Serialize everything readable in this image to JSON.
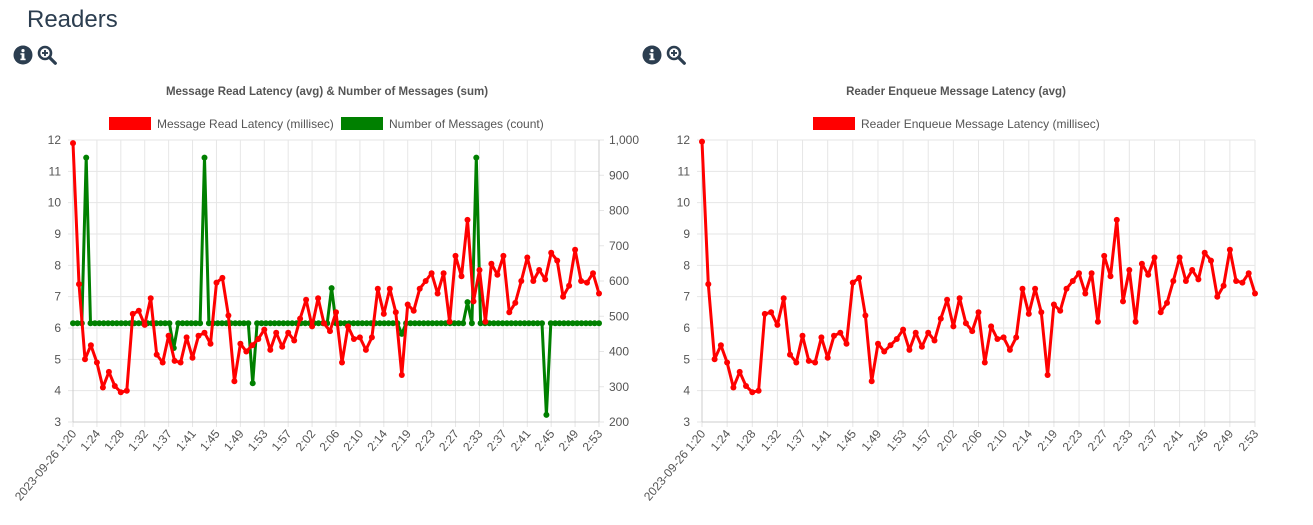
{
  "page": {
    "title": "Readers"
  },
  "icons": {
    "info": "info-circle-icon",
    "zoom": "magnifier-plus-icon"
  },
  "colors": {
    "red": "#ff0000",
    "green": "#008000",
    "grid": "#e6e6e6",
    "text": "#555555"
  },
  "chart_data": [
    {
      "type": "line",
      "title": "Message Read Latency (avg) & Number of Messages (sum)",
      "x_ticks": [
        "2023-09-26 1:20",
        "1:24",
        "1:28",
        "1:32",
        "1:37",
        "1:41",
        "1:45",
        "1:49",
        "1:53",
        "1:57",
        "2:02",
        "2:06",
        "2:10",
        "2:14",
        "2:19",
        "2:23",
        "2:27",
        "2:33",
        "2:37",
        "2:41",
        "2:45",
        "2:49",
        "2:53"
      ],
      "y_left": {
        "min": 3,
        "max": 12,
        "ticks": [
          "3",
          "4",
          "5",
          "6",
          "7",
          "8",
          "9",
          "10",
          "11",
          "12"
        ]
      },
      "y_right": {
        "min": 200,
        "max": 1000,
        "ticks": [
          "200",
          "300",
          "400",
          "500",
          "600",
          "700",
          "800",
          "900",
          "1,000"
        ]
      },
      "legend_position": "top",
      "grid": true,
      "series": [
        {
          "name": "Message Read Latency (millisec)",
          "color": "#ff0000",
          "axis": "left",
          "values": [
            11.9,
            7.4,
            5.0,
            5.45,
            4.9,
            4.1,
            4.6,
            4.15,
            3.95,
            4.0,
            6.45,
            6.55,
            6.1,
            6.95,
            5.15,
            4.9,
            5.75,
            4.95,
            4.9,
            5.7,
            5.05,
            5.75,
            5.85,
            5.5,
            7.45,
            7.6,
            6.4,
            4.3,
            5.5,
            5.25,
            5.45,
            5.65,
            5.95,
            5.3,
            5.85,
            5.4,
            5.85,
            5.6,
            6.3,
            6.9,
            6.05,
            6.95,
            6.15,
            5.9,
            6.5,
            4.9,
            6.05,
            5.65,
            5.7,
            5.3,
            5.7,
            7.25,
            6.45,
            7.25,
            6.5,
            4.5,
            6.75,
            6.55,
            7.25,
            7.5,
            7.75,
            7.1,
            7.75,
            6.2,
            8.3,
            7.65,
            9.45,
            6.85,
            7.85,
            6.2,
            8.05,
            7.7,
            8.3,
            6.5,
            6.8,
            7.5,
            8.25,
            7.5,
            7.85,
            7.55,
            8.4,
            8.15,
            7.0,
            7.35,
            8.5,
            7.5,
            7.45,
            7.75,
            7.1
          ]
        },
        {
          "name": "Number of Messages (count)",
          "color": "#008000",
          "axis": "right",
          "values": [
            480,
            480,
            480,
            950,
            480,
            480,
            480,
            480,
            480,
            480,
            480,
            480,
            480,
            480,
            480,
            480,
            480,
            480,
            480,
            480,
            480,
            480,
            480,
            410,
            480,
            480,
            480,
            480,
            480,
            480,
            950,
            480,
            480,
            480,
            480,
            480,
            480,
            480,
            480,
            480,
            480,
            310,
            480,
            480,
            480,
            480,
            480,
            480,
            480,
            480,
            480,
            480,
            480,
            480,
            480,
            480,
            480,
            480,
            480,
            580,
            480,
            480,
            480,
            480,
            480,
            480,
            480,
            480,
            480,
            480,
            480,
            480,
            480,
            480,
            480,
            450,
            480,
            480,
            480,
            480,
            480,
            480,
            480,
            480,
            480,
            480,
            480,
            480,
            480,
            480,
            540,
            480,
            950,
            480,
            480,
            480,
            480,
            480,
            480,
            480,
            480,
            480,
            480,
            480,
            480,
            480,
            480,
            480,
            220,
            480,
            480,
            480,
            480,
            480,
            480,
            480,
            480,
            480,
            480,
            480,
            480
          ]
        }
      ]
    },
    {
      "type": "line",
      "title": "Reader Enqueue Message Latency (avg)",
      "x_ticks": [
        "2023-09-26 1:20",
        "1:24",
        "1:28",
        "1:32",
        "1:37",
        "1:41",
        "1:45",
        "1:49",
        "1:53",
        "1:57",
        "2:02",
        "2:06",
        "2:10",
        "2:14",
        "2:19",
        "2:23",
        "2:27",
        "2:33",
        "2:37",
        "2:41",
        "2:45",
        "2:49",
        "2:53"
      ],
      "y_left": {
        "min": 3,
        "max": 12,
        "ticks": [
          "3",
          "4",
          "5",
          "6",
          "7",
          "8",
          "9",
          "10",
          "11",
          "12"
        ]
      },
      "legend_position": "top",
      "grid": true,
      "series": [
        {
          "name": "Reader Enqueue Message Latency (millisec)",
          "color": "#ff0000",
          "axis": "left",
          "values": [
            11.95,
            7.4,
            5.0,
            5.45,
            4.9,
            4.1,
            4.6,
            4.15,
            3.95,
            4.0,
            6.45,
            6.5,
            6.1,
            6.95,
            5.15,
            4.9,
            5.75,
            4.95,
            4.9,
            5.7,
            5.05,
            5.75,
            5.85,
            5.5,
            7.45,
            7.6,
            6.4,
            4.3,
            5.5,
            5.25,
            5.45,
            5.65,
            5.95,
            5.3,
            5.85,
            5.4,
            5.85,
            5.6,
            6.3,
            6.9,
            6.05,
            6.95,
            6.15,
            5.9,
            6.5,
            4.9,
            6.05,
            5.65,
            5.7,
            5.3,
            5.7,
            7.25,
            6.45,
            7.25,
            6.5,
            4.5,
            6.75,
            6.55,
            7.25,
            7.5,
            7.75,
            7.1,
            7.75,
            6.2,
            8.3,
            7.65,
            9.45,
            6.85,
            7.85,
            6.2,
            8.05,
            7.7,
            8.25,
            6.5,
            6.8,
            7.5,
            8.25,
            7.5,
            7.85,
            7.55,
            8.4,
            8.15,
            7.0,
            7.35,
            8.5,
            7.5,
            7.45,
            7.75,
            7.1
          ]
        }
      ]
    }
  ]
}
